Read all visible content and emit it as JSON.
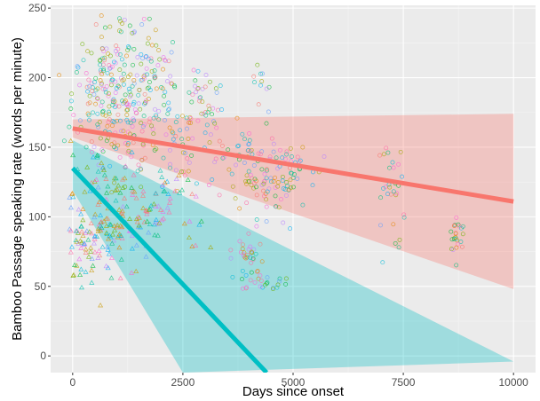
{
  "chart_data": {
    "type": "scatter",
    "title": "",
    "xlabel": "Days since onset",
    "ylabel": "Bamboo Passage speaking rate (words per minute)",
    "xlim": [
      -500,
      10500
    ],
    "ylim": [
      -12,
      252
    ],
    "x_ticks": [
      0,
      2500,
      5000,
      7500,
      10000
    ],
    "y_ticks": [
      0,
      50,
      100,
      150,
      200,
      250
    ],
    "x_tick_labels": [
      "0",
      "2500",
      "5000",
      "7500",
      "10000"
    ],
    "y_tick_labels": [
      "0",
      "50",
      "100",
      "150",
      "200",
      "250"
    ],
    "grid": true,
    "legend": "none",
    "panel_background": "#ebebeb",
    "point_palette": [
      "#f8766d",
      "#e58700",
      "#c99800",
      "#a3a500",
      "#6bb100",
      "#00ba38",
      "#00bf7d",
      "#00c0af",
      "#00bcd8",
      "#00b0f6",
      "#619cff",
      "#b983ff",
      "#e76bf3",
      "#fd61d1",
      "#ff67a4"
    ],
    "point_clusters": [
      {
        "x": 800,
        "y": 200,
        "sx": 400,
        "sy": 22,
        "n": 140,
        "shape": "circle"
      },
      {
        "x": 1100,
        "y": 165,
        "sx": 550,
        "sy": 18,
        "n": 120,
        "shape": "circle"
      },
      {
        "x": 1700,
        "y": 200,
        "sx": 350,
        "sy": 20,
        "n": 70,
        "shape": "circle"
      },
      {
        "x": 2900,
        "y": 180,
        "sx": 350,
        "sy": 12,
        "n": 45,
        "shape": "circle"
      },
      {
        "x": 2600,
        "y": 150,
        "sx": 500,
        "sy": 15,
        "n": 45,
        "shape": "circle"
      },
      {
        "x": 4300,
        "y": 125,
        "sx": 550,
        "sy": 16,
        "n": 80,
        "shape": "circle"
      },
      {
        "x": 4900,
        "y": 135,
        "sx": 200,
        "sy": 10,
        "n": 25,
        "shape": "circle"
      },
      {
        "x": 3950,
        "y": 145,
        "sx": 250,
        "sy": 12,
        "n": 25,
        "shape": "circle"
      },
      {
        "x": 7200,
        "y": 128,
        "sx": 150,
        "sy": 18,
        "n": 30,
        "shape": "circle"
      },
      {
        "x": 8750,
        "y": 85,
        "sx": 150,
        "sy": 7,
        "n": 25,
        "shape": "circle"
      },
      {
        "x": 3950,
        "y": 72,
        "sx": 200,
        "sy": 6,
        "n": 30,
        "shape": "circle"
      },
      {
        "x": 4300,
        "y": 53,
        "sx": 300,
        "sy": 3,
        "n": 25,
        "shape": "circle"
      },
      {
        "x": 4300,
        "y": 195,
        "sx": 120,
        "sy": 10,
        "n": 10,
        "shape": "circle"
      },
      {
        "x": 700,
        "y": 88,
        "sx": 450,
        "sy": 16,
        "n": 120,
        "shape": "triangle"
      },
      {
        "x": 1800,
        "y": 100,
        "sx": 250,
        "sy": 8,
        "n": 35,
        "shape": "triangle"
      },
      {
        "x": 200,
        "y": 75,
        "sx": 200,
        "sy": 12,
        "n": 20,
        "shape": "triangle"
      },
      {
        "x": 900,
        "y": 125,
        "sx": 450,
        "sy": 12,
        "n": 40,
        "shape": "triangle"
      },
      {
        "x": 2200,
        "y": 118,
        "sx": 350,
        "sy": 8,
        "n": 20,
        "shape": "triangle"
      },
      {
        "x": 2800,
        "y": 88,
        "sx": 200,
        "sy": 8,
        "n": 8,
        "shape": "triangle"
      }
    ],
    "series": [
      {
        "type": "linear_fit",
        "color": "#f8766d",
        "line": [
          [
            0,
            163.5
          ],
          [
            10000,
            111
          ]
        ],
        "band_upper": [
          [
            0,
            170
          ],
          [
            10000,
            174
          ]
        ],
        "band_lower": [
          [
            0,
            157
          ],
          [
            10000,
            48
          ]
        ]
      },
      {
        "type": "linear_fit",
        "color": "#00bfc4",
        "line": [
          [
            0,
            135
          ],
          [
            4400,
            -12
          ]
        ],
        "band_upper": [
          [
            0,
            155
          ],
          [
            10000,
            -4
          ]
        ],
        "band_lower": [
          [
            0,
            119
          ],
          [
            2500,
            -12
          ]
        ]
      }
    ]
  }
}
